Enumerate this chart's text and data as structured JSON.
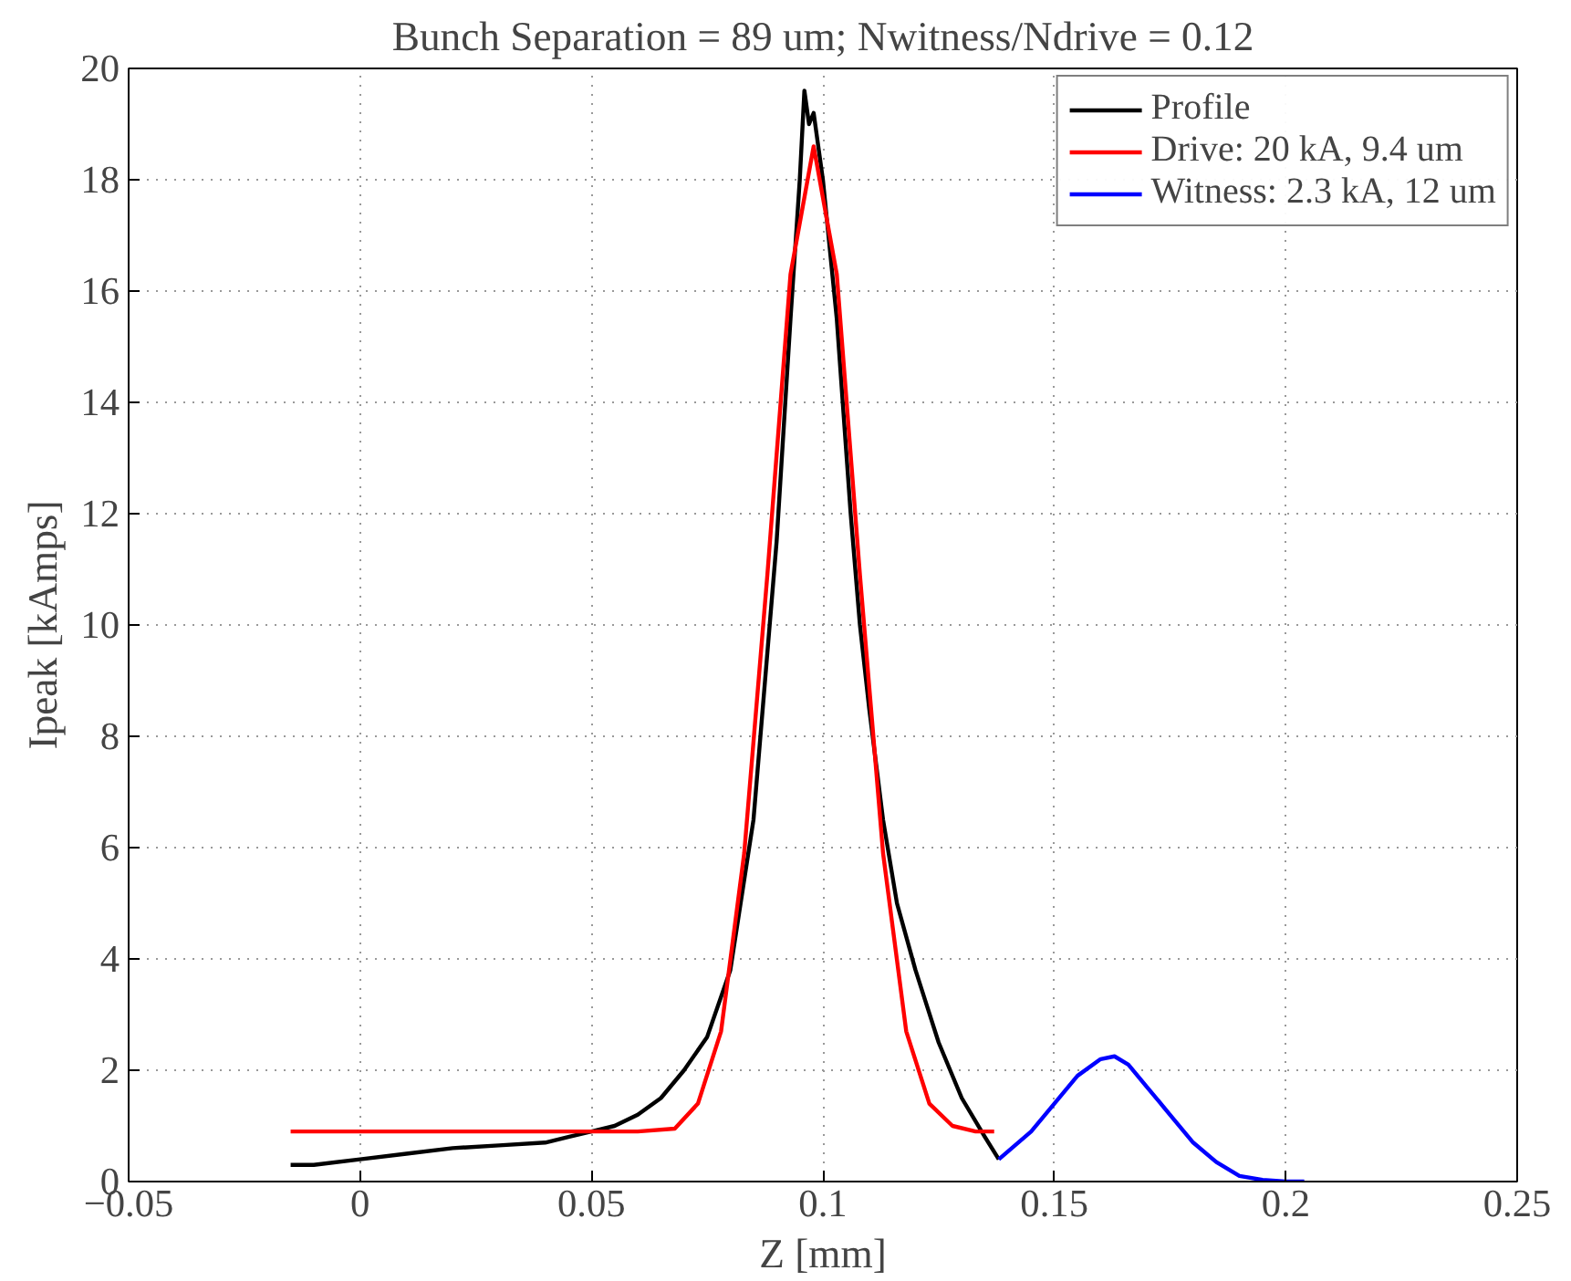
{
  "chart_data": {
    "type": "line",
    "title": "Bunch Separation = 89 um; Nwitness/Ndrive = 0.12",
    "xlabel": "Z [mm]",
    "ylabel": "Ipeak [kAmps]",
    "xlim": [
      -0.05,
      0.25
    ],
    "xticks": [
      {
        "value": -0.05,
        "label": "−0.05"
      },
      0,
      0.05,
      0.1,
      0.15,
      0.2,
      0.25
    ],
    "ylim": [
      0,
      20
    ],
    "yticks": [
      0,
      2,
      4,
      6,
      8,
      10,
      12,
      14,
      16,
      18,
      20
    ],
    "grid": true,
    "legend": "top right",
    "line_style": "solid",
    "marker": "none",
    "series": [
      {
        "name": "Profile",
        "color": "#000000",
        "x": [
          -0.015,
          -0.01,
          0,
          0.01,
          0.02,
          0.03,
          0.04,
          0.045,
          0.05,
          0.055,
          0.06,
          0.065,
          0.07,
          0.075,
          0.08,
          0.085,
          0.09,
          0.093,
          0.095,
          0.096,
          0.097,
          0.098,
          0.1,
          0.103,
          0.106,
          0.108,
          0.11,
          0.113,
          0.116,
          0.12,
          0.125,
          0.13,
          0.135,
          0.138
        ],
        "values": [
          0.3,
          0.3,
          0.4,
          0.5,
          0.6,
          0.65,
          0.7,
          0.8,
          0.9,
          1.0,
          1.2,
          1.5,
          2.0,
          2.6,
          3.8,
          6.5,
          11.5,
          15.5,
          18.0,
          19.6,
          19.0,
          19.2,
          18.0,
          15.5,
          12.0,
          10.0,
          8.5,
          6.5,
          5.0,
          3.8,
          2.5,
          1.5,
          0.8,
          0.4
        ]
      },
      {
        "name": "Drive: 20 kA, 9.4 um",
        "color": "#ff0000",
        "x": [
          -0.015,
          0.06,
          0.068,
          0.073,
          0.078,
          0.083,
          0.088,
          0.093,
          0.098,
          0.103,
          0.108,
          0.113,
          0.118,
          0.123,
          0.128,
          0.133,
          0.137
        ],
        "values": [
          0.9,
          0.9,
          0.95,
          1.4,
          2.7,
          5.9,
          10.9,
          16.3,
          18.6,
          16.3,
          10.9,
          5.9,
          2.7,
          1.4,
          1.0,
          0.9,
          0.9
        ]
      },
      {
        "name": "Witness: 2.3 kA, 12 um",
        "color": "#0000ff",
        "x": [
          0.138,
          0.145,
          0.15,
          0.155,
          0.16,
          0.163,
          0.166,
          0.17,
          0.175,
          0.18,
          0.185,
          0.19,
          0.195,
          0.2,
          0.204
        ],
        "values": [
          0.4,
          0.9,
          1.4,
          1.9,
          2.2,
          2.25,
          2.1,
          1.7,
          1.2,
          0.7,
          0.35,
          0.1,
          0.03,
          0.0,
          0.0
        ]
      }
    ]
  }
}
